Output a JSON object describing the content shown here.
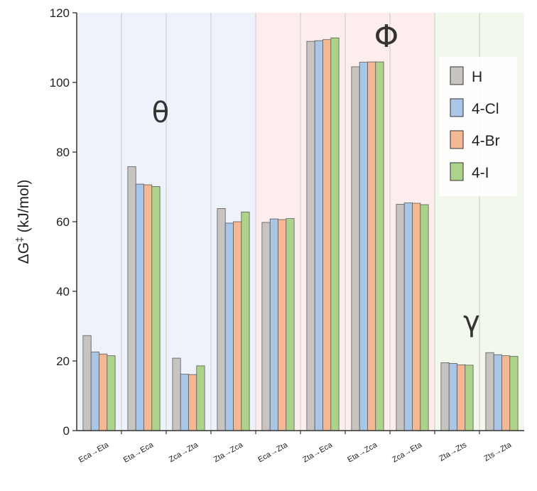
{
  "chart_data": {
    "type": "bar",
    "ylabel_prefix": "ΔG",
    "ylabel_sup": "‡",
    "ylabel_suffix": " (kJ/mol)",
    "ylim": [
      0,
      120
    ],
    "yticks": [
      0,
      20,
      40,
      60,
      80,
      100,
      120
    ],
    "grid": "vertical separators between categories",
    "categories": [
      "Eca→Eta",
      "Eta→Eca",
      "Zca→Zta",
      "Zta→Zca",
      "Eca→Zta",
      "Zta→Eca",
      "Eta→Zca",
      "Zca→Eta",
      "Zta→Zts",
      "Zts→Zta"
    ],
    "series": [
      {
        "name": "H",
        "color": "#c8c4c2",
        "values": [
          27.3,
          75.8,
          20.8,
          63.8,
          59.8,
          111.8,
          104.5,
          65.0,
          19.5,
          22.4
        ]
      },
      {
        "name": "4-Cl",
        "color": "#a9c6e6",
        "values": [
          22.6,
          70.8,
          16.2,
          59.6,
          60.8,
          112.0,
          105.8,
          65.4,
          19.3,
          21.8
        ]
      },
      {
        "name": "4-Br",
        "color": "#f4b894",
        "values": [
          22.0,
          70.6,
          16.1,
          60.0,
          60.6,
          112.3,
          105.9,
          65.3,
          18.9,
          21.5
        ]
      },
      {
        "name": "4-I",
        "color": "#add38b",
        "values": [
          21.5,
          70.1,
          18.6,
          62.8,
          60.9,
          112.8,
          105.9,
          64.9,
          18.8,
          21.3
        ]
      }
    ],
    "regions": [
      {
        "label": "θ",
        "from_category": 0,
        "to_category": 3,
        "color": "#eef3fb"
      },
      {
        "label": "Φ",
        "from_category": 4,
        "to_category": 7,
        "color": "#fdeeed"
      },
      {
        "label": "γ",
        "from_category": 8,
        "to_category": 9,
        "color": "#f3f8ec"
      }
    ],
    "legend_position": "top-right"
  }
}
